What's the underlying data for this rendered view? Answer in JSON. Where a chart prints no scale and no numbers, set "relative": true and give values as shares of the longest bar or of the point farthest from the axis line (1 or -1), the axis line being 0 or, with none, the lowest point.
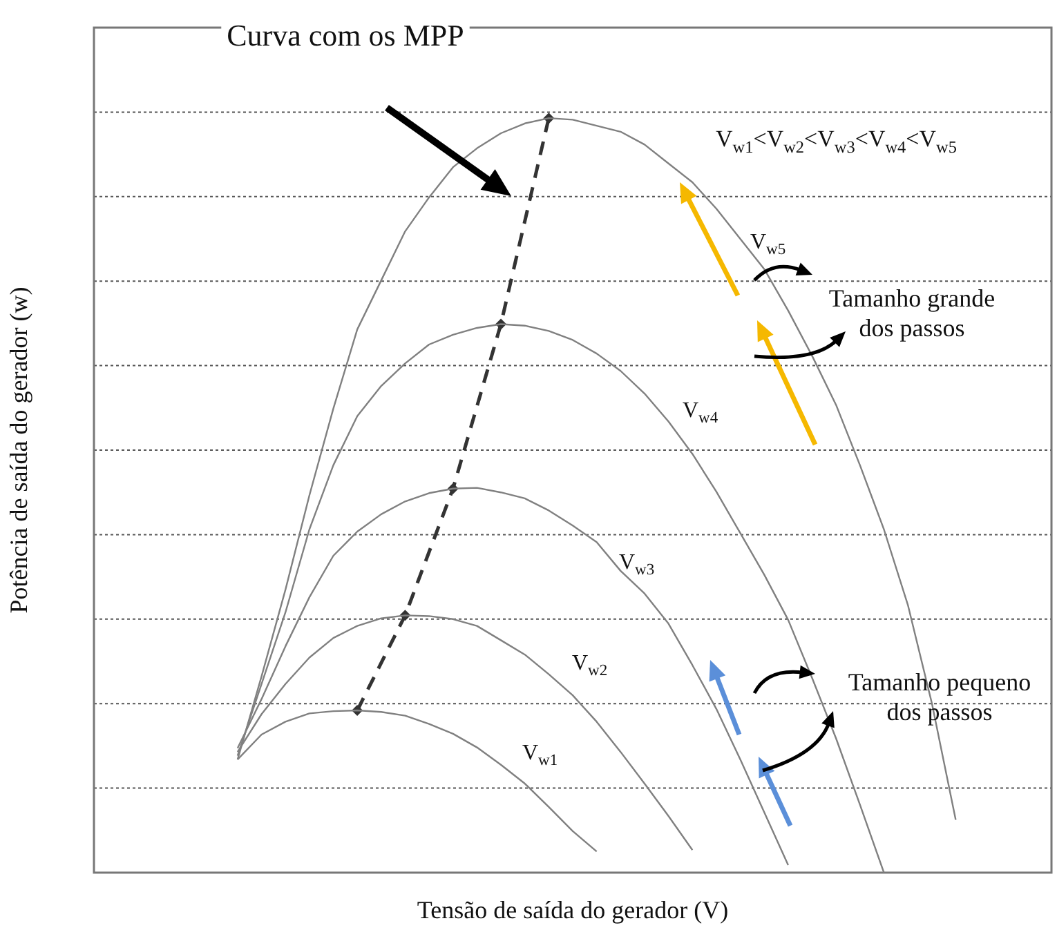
{
  "chart_data": {
    "type": "line",
    "relative": true,
    "grid": "y",
    "xlabel": "Tensão de saída do gerador (V)",
    "ylabel": "Potência de saída do gerador (w)",
    "annotations": [
      "Curva com os MPP",
      "V$_{w1}$<V$_{w2}$<V$_{w3}$<V$_{w4}$<V$_{w5}$",
      "Tamanho grande dos passos",
      "Tamanho pequeno dos passos"
    ],
    "categories": [
      null,
      null,
      null,
      null,
      null,
      null,
      null,
      null,
      null,
      null,
      null,
      null,
      null,
      null,
      null,
      null,
      null,
      null,
      null,
      null,
      null,
      null,
      null,
      null,
      null,
      null,
      null,
      null,
      null,
      null,
      null,
      null,
      null,
      null,
      null,
      null,
      null,
      null,
      null,
      null,
      null
    ],
    "series": [
      {
        "name": "V$_{w1}$",
        "color": "#808080",
        "values": [
          null,
          null,
          null,
          null,
          null,
          null,
          0.15,
          0.183,
          0.2,
          0.211,
          0.214,
          0.215,
          0.213,
          0.208,
          0.197,
          0.184,
          0.166,
          0.143,
          0.118,
          0.087,
          0.055,
          0.028,
          null,
          null,
          null,
          null,
          null,
          null,
          null,
          null,
          null,
          null,
          null,
          null,
          null,
          null,
          null,
          null,
          null,
          null,
          null
        ]
      },
      {
        "name": "V$_{w2}$",
        "color": "#808080",
        "values": [
          null,
          null,
          null,
          null,
          null,
          null,
          0.16,
          0.21,
          0.25,
          0.285,
          0.311,
          0.327,
          0.337,
          0.341,
          0.34,
          0.336,
          0.327,
          0.308,
          0.289,
          0.263,
          0.235,
          0.2,
          0.16,
          0.118,
          0.075,
          0.03,
          null,
          null,
          null,
          null,
          null,
          null,
          null,
          null,
          null,
          null,
          null,
          null,
          null,
          null,
          null
        ]
      },
      {
        "name": "V$_{w3}$",
        "color": "#808080",
        "values": [
          null,
          null,
          null,
          null,
          null,
          null,
          0.165,
          0.23,
          0.3,
          0.365,
          0.42,
          0.452,
          0.475,
          0.492,
          0.503,
          0.509,
          0.51,
          0.504,
          0.496,
          0.48,
          0.46,
          0.438,
          0.4,
          0.37,
          0.33,
          0.275,
          0.217,
          0.15,
          0.08,
          0.01,
          null,
          null,
          null,
          null,
          null,
          null,
          null,
          null,
          null,
          null,
          null
        ]
      },
      {
        "name": "V$_{w4}$",
        "color": "#808080",
        "values": [
          null,
          null,
          null,
          null,
          null,
          null,
          0.155,
          0.25,
          0.345,
          0.455,
          0.54,
          0.605,
          0.645,
          0.675,
          0.7,
          0.713,
          0.722,
          0.727,
          0.725,
          0.718,
          0.706,
          0.688,
          0.665,
          0.635,
          0.598,
          0.555,
          0.505,
          0.45,
          0.395,
          0.335,
          0.258,
          0.178,
          0.09,
          0,
          null,
          null,
          null,
          null,
          null,
          null,
          null
        ]
      },
      {
        "name": "V$_{w5}$",
        "color": "#808080",
        "values": [
          null,
          null,
          null,
          null,
          null,
          null,
          0.15,
          0.26,
          0.375,
          0.5,
          0.615,
          0.72,
          0.785,
          0.85,
          0.895,
          0.935,
          0.96,
          0.98,
          0.993,
          1,
          0.998,
          0.99,
          0.982,
          0.965,
          0.94,
          0.915,
          0.88,
          0.84,
          0.8,
          0.745,
          0.685,
          0.62,
          0.54,
          0.455,
          0.355,
          0.225,
          0.07,
          null,
          null,
          null,
          null
        ]
      },
      {
        "color": "#333333",
        "line_style": "dashed",
        "marker": "diamond",
        "values": [
          null,
          null,
          null,
          null,
          null,
          null,
          null,
          null,
          null,
          null,
          null,
          0.215,
          null,
          0.341,
          null,
          0.509,
          null,
          0.727,
          null,
          1,
          null,
          null,
          null,
          null,
          null,
          null,
          null,
          null,
          null,
          null,
          null,
          null,
          null,
          null,
          null,
          null,
          null,
          null,
          null,
          null,
          null
        ]
      }
    ]
  }
}
